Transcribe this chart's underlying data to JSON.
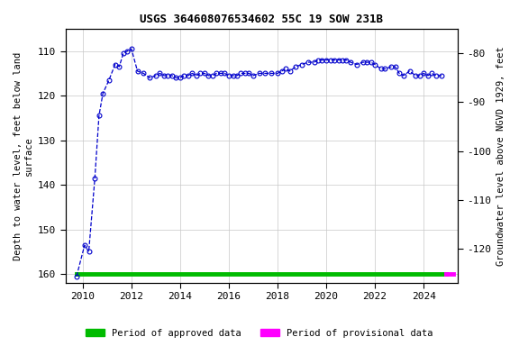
{
  "title": "USGS 364608076534602 55C 19 SOW 231B",
  "ylabel_left": "Depth to water level, feet below land\nsurface",
  "ylabel_right": "Groundwater level above NGVD 1929, feet",
  "ylim_left": [
    162,
    105
  ],
  "ylim_right": [
    -127,
    -75
  ],
  "yticks_left": [
    110,
    120,
    130,
    140,
    150,
    160
  ],
  "yticks_right": [
    -80,
    -90,
    -100,
    -110,
    -120
  ],
  "xlim": [
    2009.3,
    2025.4
  ],
  "xticks": [
    2010,
    2012,
    2014,
    2016,
    2018,
    2020,
    2022,
    2024
  ],
  "background_color": "#ffffff",
  "grid_color": "#c8c8c8",
  "line_color": "#0000cc",
  "marker_color": "#0000cc",
  "approved_color": "#00bb00",
  "provisional_color": "#ff00ff",
  "data_x": [
    2009.75,
    2010.08,
    2010.25,
    2010.5,
    2010.67,
    2010.83,
    2011.08,
    2011.33,
    2011.5,
    2011.67,
    2011.83,
    2012.0,
    2012.25,
    2012.5,
    2012.75,
    2013.0,
    2013.17,
    2013.33,
    2013.5,
    2013.67,
    2013.83,
    2014.0,
    2014.17,
    2014.33,
    2014.5,
    2014.67,
    2014.83,
    2015.0,
    2015.17,
    2015.33,
    2015.5,
    2015.67,
    2015.83,
    2016.0,
    2016.17,
    2016.33,
    2016.5,
    2016.67,
    2016.83,
    2017.0,
    2017.25,
    2017.5,
    2017.75,
    2018.0,
    2018.17,
    2018.33,
    2018.5,
    2018.75,
    2019.0,
    2019.25,
    2019.5,
    2019.67,
    2019.83,
    2020.0,
    2020.17,
    2020.33,
    2020.5,
    2020.67,
    2020.83,
    2021.0,
    2021.25,
    2021.5,
    2021.67,
    2021.83,
    2022.0,
    2022.25,
    2022.42,
    2022.67,
    2022.83,
    2023.0,
    2023.17,
    2023.42,
    2023.67,
    2023.83,
    2024.0,
    2024.17,
    2024.33,
    2024.5,
    2024.75
  ],
  "data_y": [
    160.5,
    153.5,
    155.0,
    138.5,
    124.5,
    119.5,
    116.5,
    113.0,
    113.5,
    110.5,
    110.0,
    109.5,
    114.5,
    115.0,
    116.0,
    115.5,
    115.0,
    115.5,
    115.5,
    115.5,
    116.0,
    116.0,
    115.5,
    115.5,
    115.0,
    115.5,
    115.0,
    115.0,
    115.5,
    115.5,
    115.0,
    115.0,
    115.0,
    115.5,
    115.5,
    115.5,
    115.0,
    115.0,
    115.0,
    115.5,
    115.0,
    115.0,
    115.0,
    115.0,
    114.5,
    114.0,
    114.5,
    113.5,
    113.0,
    112.5,
    112.5,
    112.0,
    112.0,
    112.0,
    112.0,
    112.0,
    112.0,
    112.0,
    112.0,
    112.5,
    113.0,
    112.5,
    112.5,
    112.5,
    113.0,
    114.0,
    114.0,
    113.5,
    113.5,
    115.0,
    115.5,
    114.5,
    115.5,
    115.5,
    115.0,
    115.5,
    115.0,
    115.5,
    115.5
  ],
  "approved_xmin": 2009.75,
  "approved_xmax": 2024.9,
  "provisional_xmin": 2024.9,
  "provisional_xmax": 2025.2,
  "bar_y": 160,
  "title_fontsize": 9,
  "label_fontsize": 7.5,
  "tick_fontsize": 8,
  "legend_fontsize": 7.5
}
